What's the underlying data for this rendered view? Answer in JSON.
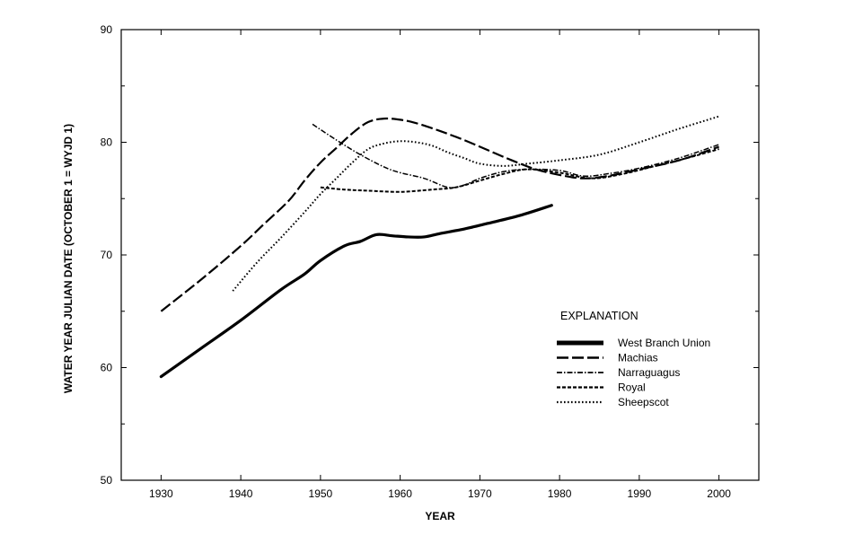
{
  "chart_data": {
    "type": "line",
    "title": "",
    "xlabel": "YEAR",
    "ylabel": "WATER YEAR JULIAN DATE (OCTOBER 1 = WYJD 1)",
    "xlim": [
      1925,
      2005
    ],
    "ylim": [
      50,
      90
    ],
    "x_ticks": [
      1930,
      1940,
      1950,
      1960,
      1970,
      1980,
      1990,
      2000
    ],
    "y_ticks": [
      50,
      60,
      70,
      80,
      90
    ],
    "grid": false,
    "legend": {
      "title": "EXPLANATION",
      "placement": "lower-right"
    },
    "series": [
      {
        "name": "West Branch Union",
        "style": "thick-solid",
        "color": "#000000",
        "x": [
          1930,
          1935,
          1940,
          1945,
          1948,
          1950,
          1953,
          1955,
          1957,
          1959,
          1961,
          1963,
          1965,
          1968,
          1971,
          1975,
          1979
        ],
        "y": [
          59.2,
          61.7,
          64.2,
          66.9,
          68.3,
          69.5,
          70.8,
          71.2,
          71.8,
          71.7,
          71.6,
          71.6,
          71.9,
          72.3,
          72.8,
          73.5,
          74.4
        ]
      },
      {
        "name": "Machias",
        "style": "long-dash",
        "color": "#000000",
        "x": [
          1930,
          1935,
          1940,
          1943,
          1946,
          1948,
          1950,
          1952,
          1954,
          1956,
          1958,
          1960,
          1962,
          1965,
          1968,
          1971,
          1974,
          1977,
          1980,
          1983,
          1986,
          1990,
          1995,
          2000
        ],
        "y": [
          65.0,
          67.8,
          70.8,
          72.8,
          74.8,
          76.6,
          78.2,
          79.5,
          80.8,
          81.8,
          82.1,
          82.0,
          81.7,
          81.0,
          80.2,
          79.3,
          78.4,
          77.6,
          77.1,
          76.8,
          77.0,
          77.6,
          78.4,
          79.6
        ]
      },
      {
        "name": "Narraguagus",
        "style": "dash-dot",
        "color": "#000000",
        "x": [
          1949,
          1952,
          1955,
          1958,
          1960,
          1963,
          1966,
          1968,
          1970,
          1973,
          1976,
          1980,
          1983,
          1986,
          1990,
          1995,
          2000
        ],
        "y": [
          81.6,
          80.2,
          78.9,
          77.8,
          77.3,
          76.8,
          76.0,
          76.2,
          76.8,
          77.4,
          77.6,
          77.5,
          77.0,
          77.2,
          77.7,
          78.6,
          79.8
        ]
      },
      {
        "name": "Royal",
        "style": "short-dash",
        "color": "#000000",
        "x": [
          1950,
          1953,
          1956,
          1960,
          1964,
          1967,
          1970,
          1973,
          1976,
          1980,
          1984,
          1988,
          1992,
          1996,
          2000
        ],
        "y": [
          76.0,
          75.8,
          75.7,
          75.6,
          75.8,
          76.0,
          76.6,
          77.2,
          77.6,
          77.3,
          76.8,
          77.2,
          77.9,
          78.6,
          79.4
        ]
      },
      {
        "name": "Sheepscot",
        "style": "dotted",
        "color": "#000000",
        "x": [
          1939,
          1942,
          1945,
          1948,
          1950,
          1952,
          1954,
          1956,
          1958,
          1960,
          1962,
          1964,
          1966,
          1968,
          1970,
          1973,
          1976,
          1980,
          1985,
          1990,
          1995,
          2000
        ],
        "y": [
          66.8,
          69.3,
          71.5,
          73.8,
          75.4,
          76.8,
          78.2,
          79.4,
          79.9,
          80.1,
          80.0,
          79.7,
          79.1,
          78.6,
          78.1,
          77.9,
          78.1,
          78.4,
          78.9,
          80.0,
          81.2,
          82.3
        ]
      }
    ]
  }
}
